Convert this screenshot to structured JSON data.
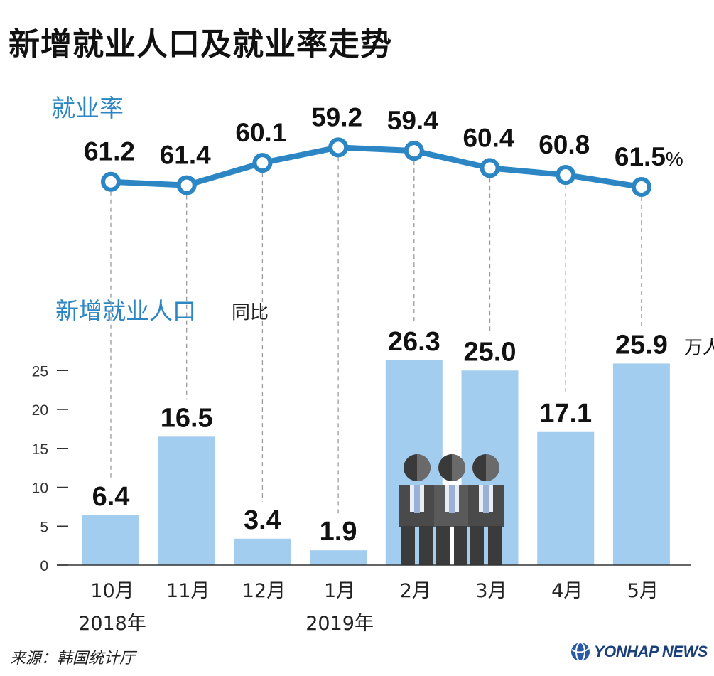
{
  "header": {
    "title": "新增就业人口及就业率走势"
  },
  "chart_data": [
    {
      "type": "line",
      "title": "就业率",
      "unit": "%",
      "categories": [
        "10月",
        "11月",
        "12月",
        "1月",
        "2月",
        "3月",
        "4月",
        "5月"
      ],
      "values": [
        61.2,
        61.4,
        60.1,
        59.2,
        59.4,
        60.4,
        60.8,
        61.5
      ],
      "color": "#2d86c4"
    },
    {
      "type": "bar",
      "title": "新增就业人口",
      "subtitle": "同比",
      "unit": "万人",
      "categories": [
        "10月",
        "11月",
        "12月",
        "1月",
        "2月",
        "3月",
        "4月",
        "5月"
      ],
      "year_labels": [
        "2018年",
        "2019年"
      ],
      "values": [
        6.4,
        16.5,
        3.4,
        1.9,
        26.3,
        25.0,
        17.1,
        25.9
      ],
      "value_labels": [
        "6.4",
        "16.5",
        "3.4",
        "1.9",
        "26.3",
        "25.0",
        "17.1",
        "25.9"
      ],
      "yticks": [
        0,
        5,
        10,
        15,
        20,
        25
      ],
      "ylim": [
        0,
        30
      ],
      "color": "#a3cdee"
    }
  ],
  "footer": {
    "source": "来源：韩国统计厅",
    "logo_text": "YONHAP NEWS"
  }
}
